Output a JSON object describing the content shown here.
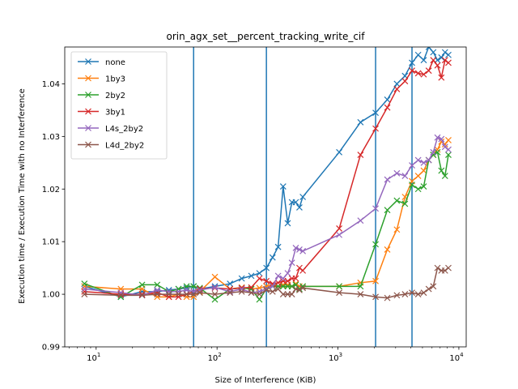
{
  "chart_data": {
    "type": "line",
    "title": "orin_agx_set__percent_tracking_write_cif",
    "xlabel": "Size of Interference (KiB)",
    "ylabel": "Execution time / Execution Time with no Interference",
    "xscale": "log",
    "xlim": [
      5.5,
      11500
    ],
    "ylim": [
      0.99,
      1.047
    ],
    "x_ticks": [
      {
        "value": 10,
        "base": "10",
        "exp": "1"
      },
      {
        "value": 100,
        "base": "10",
        "exp": "2"
      },
      {
        "value": 1000,
        "base": "10",
        "exp": "3"
      },
      {
        "value": 10000,
        "base": "10",
        "exp": "4"
      }
    ],
    "y_ticks": [
      {
        "value": 0.99,
        "label": "0.99"
      },
      {
        "value": 1.0,
        "label": "1.00"
      },
      {
        "value": 1.01,
        "label": "1.01"
      },
      {
        "value": 1.02,
        "label": "1.02"
      },
      {
        "value": 1.03,
        "label": "1.03"
      },
      {
        "value": 1.04,
        "label": "1.04"
      }
    ],
    "vlines": [
      64,
      256,
      2048,
      4096
    ],
    "vline_color": "#1f77b4",
    "legend_position": "upper-left",
    "grid": false,
    "series": [
      {
        "name": "none",
        "color": "#1f77b4",
        "x": [
          8,
          16,
          24,
          32,
          40,
          48,
          56,
          64,
          72,
          96,
          128,
          160,
          192,
          224,
          256,
          288,
          320,
          352,
          384,
          416,
          448,
          480,
          512,
          1024,
          1536,
          2048,
          2560,
          3072,
          3584,
          4096,
          4608,
          5120,
          5632,
          6144,
          6656,
          7168,
          7680,
          8192
        ],
        "y": [
          1.0015,
          0.9995,
          1.0005,
          1.0005,
          1.0008,
          1.001,
          1.0012,
          1.0015,
          1.001,
          1.0015,
          1.002,
          1.003,
          1.0035,
          1.004,
          1.005,
          1.007,
          1.009,
          1.0205,
          1.0135,
          1.0175,
          1.0175,
          1.0165,
          1.0185,
          1.027,
          1.0327,
          1.0345,
          1.037,
          1.04,
          1.0415,
          1.044,
          1.0455,
          1.0445,
          1.047,
          1.046,
          1.0445,
          1.045,
          1.046,
          1.0455
        ]
      },
      {
        "name": "1by3",
        "color": "#ff7f0e",
        "x": [
          8,
          16,
          24,
          32,
          40,
          48,
          56,
          64,
          72,
          96,
          128,
          160,
          192,
          224,
          256,
          288,
          320,
          352,
          384,
          416,
          448,
          480,
          512,
          1024,
          1536,
          2048,
          2560,
          3072,
          3584,
          4096,
          4608,
          5120,
          5632,
          6144,
          6656,
          7168,
          7680,
          8192
        ],
        "y": [
          1.0015,
          1.001,
          1.001,
          0.9995,
          0.9995,
          1.0,
          0.9995,
          0.9995,
          1.0005,
          1.0033,
          1.001,
          1.0013,
          1.001,
          1.0012,
          1.0015,
          1.0018,
          1.0015,
          1.0018,
          1.0018,
          1.0015,
          1.002,
          1.0015,
          1.0015,
          1.0015,
          1.0022,
          1.0025,
          1.0085,
          1.0123,
          1.0185,
          1.0215,
          1.0225,
          1.0235,
          1.0255,
          1.0265,
          1.0275,
          1.029,
          1.0285,
          1.0293
        ]
      },
      {
        "name": "2by2",
        "color": "#2ca02c",
        "x": [
          8,
          16,
          24,
          32,
          40,
          48,
          56,
          64,
          72,
          96,
          128,
          160,
          192,
          224,
          256,
          288,
          320,
          352,
          384,
          416,
          448,
          480,
          512,
          1024,
          1536,
          2048,
          2560,
          3072,
          3584,
          4096,
          4608,
          5120,
          5632,
          6144,
          6656,
          7168,
          7680,
          8192
        ],
        "y": [
          1.002,
          0.9995,
          1.0018,
          1.0018,
          1.0005,
          1.001,
          1.0015,
          1.0015,
          1.0012,
          0.999,
          1.001,
          1.0012,
          1.001,
          0.999,
          1.001,
          1.0015,
          1.0015,
          1.0015,
          1.0015,
          1.0015,
          1.0018,
          1.001,
          1.0015,
          1.0015,
          1.0015,
          1.0095,
          1.016,
          1.0178,
          1.0172,
          1.0208,
          1.02,
          1.0205,
          1.0255,
          1.0265,
          1.027,
          1.0235,
          1.0225,
          1.0265
        ]
      },
      {
        "name": "3by1",
        "color": "#d62728",
        "x": [
          8,
          16,
          24,
          32,
          40,
          48,
          56,
          64,
          72,
          96,
          128,
          160,
          192,
          224,
          256,
          288,
          320,
          352,
          384,
          416,
          448,
          480,
          512,
          1024,
          1536,
          2048,
          2560,
          3072,
          3584,
          4096,
          4608,
          5120,
          5632,
          6144,
          6656,
          7168,
          7680,
          8192
        ],
        "y": [
          1.0005,
          1.0,
          1.0,
          1.0003,
          0.9995,
          0.9995,
          1.0,
          1.0005,
          1.001,
          1.0012,
          1.001,
          1.0012,
          1.0013,
          1.003,
          1.0025,
          1.002,
          1.0022,
          1.0025,
          1.0025,
          1.003,
          1.003,
          1.005,
          1.0045,
          1.0125,
          1.0265,
          1.0315,
          1.0355,
          1.039,
          1.0405,
          1.0425,
          1.042,
          1.0418,
          1.0425,
          1.0445,
          1.0435,
          1.0412,
          1.0445,
          1.044
        ]
      },
      {
        "name": "L4s_2by2",
        "color": "#9467bd",
        "x": [
          8,
          16,
          24,
          32,
          40,
          48,
          56,
          64,
          72,
          96,
          128,
          160,
          192,
          224,
          256,
          288,
          320,
          352,
          384,
          416,
          448,
          480,
          512,
          1024,
          1536,
          2048,
          2560,
          3072,
          3584,
          4096,
          4608,
          5120,
          5632,
          6144,
          6656,
          7168,
          7680,
          8192
        ],
        "y": [
          1.001,
          1.0003,
          0.9998,
          1.0008,
          1.0005,
          1.0005,
          1.0008,
          1.0005,
          1.0008,
          1.0013,
          1.0005,
          1.001,
          1.0003,
          1.0005,
          1.001,
          1.0015,
          1.0035,
          1.003,
          1.004,
          1.006,
          1.0088,
          1.0085,
          1.0082,
          1.0113,
          1.014,
          1.0163,
          1.0218,
          1.023,
          1.0225,
          1.0245,
          1.0255,
          1.025,
          1.0255,
          1.027,
          1.0298,
          1.0295,
          1.028,
          1.0275
        ]
      },
      {
        "name": "L4d_2by2",
        "color": "#8c564b",
        "x": [
          8,
          16,
          24,
          32,
          40,
          48,
          56,
          64,
          72,
          96,
          128,
          160,
          192,
          224,
          256,
          288,
          320,
          352,
          384,
          416,
          448,
          480,
          512,
          1024,
          1536,
          2048,
          2560,
          3072,
          3584,
          4096,
          4608,
          5120,
          5632,
          6144,
          6656,
          7168,
          7680,
          8192
        ],
        "y": [
          1.0,
          0.9998,
          0.9998,
          1.0,
          1.0,
          1.0,
          1.0,
          1.0,
          1.0003,
          1.0,
          1.0003,
          1.0005,
          1.0003,
          1.0,
          1.0008,
          1.0005,
          1.001,
          1.0,
          1.0,
          1.0,
          1.001,
          1.0008,
          1.0012,
          1.0003,
          1.0,
          0.9995,
          0.9993,
          0.9998,
          1.0,
          1.0003,
          1.0,
          1.0003,
          1.001,
          1.0015,
          1.005,
          1.0045,
          1.0045,
          1.005
        ]
      }
    ]
  }
}
